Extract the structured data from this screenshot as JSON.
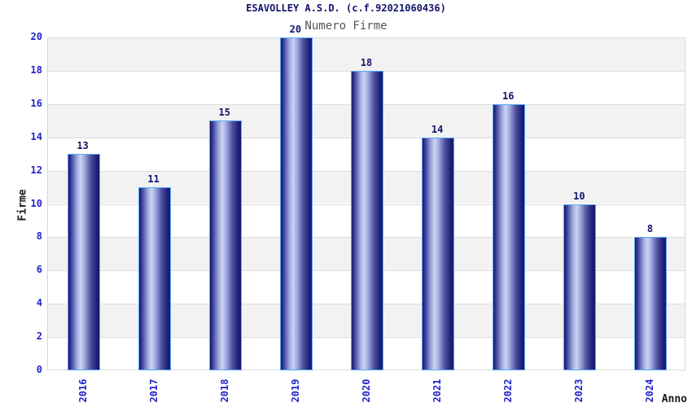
{
  "chart_data": {
    "type": "bar",
    "title": "ESAVOLLEY A.S.D. (c.f.92021060436)",
    "subtitle": "Numero Firme",
    "xlabel": "Anno",
    "ylabel": "Firme",
    "categories": [
      "2016",
      "2017",
      "2018",
      "2019",
      "2020",
      "2021",
      "2022",
      "2023",
      "2024"
    ],
    "values": [
      13,
      11,
      15,
      20,
      18,
      14,
      16,
      10,
      8
    ],
    "ylim": [
      0,
      20
    ],
    "ytick_step": 2,
    "grid": true,
    "legend": "none",
    "band_pattern": "alternating gray/white per 2-unit interval, gray at top",
    "colors": {
      "bar_body_dark": "#16166b",
      "bar_body_light": "#ccd5f2",
      "bar_border": "#58acf7",
      "tick_label": "#2222cc",
      "value_label": "#14146a",
      "title": "#14146a",
      "subtitle": "#555555",
      "axis_title": "#1a1a1a",
      "band_gray": "#f2f2f2",
      "gridline": "#dcdcdc",
      "background": "#ffffff"
    }
  }
}
